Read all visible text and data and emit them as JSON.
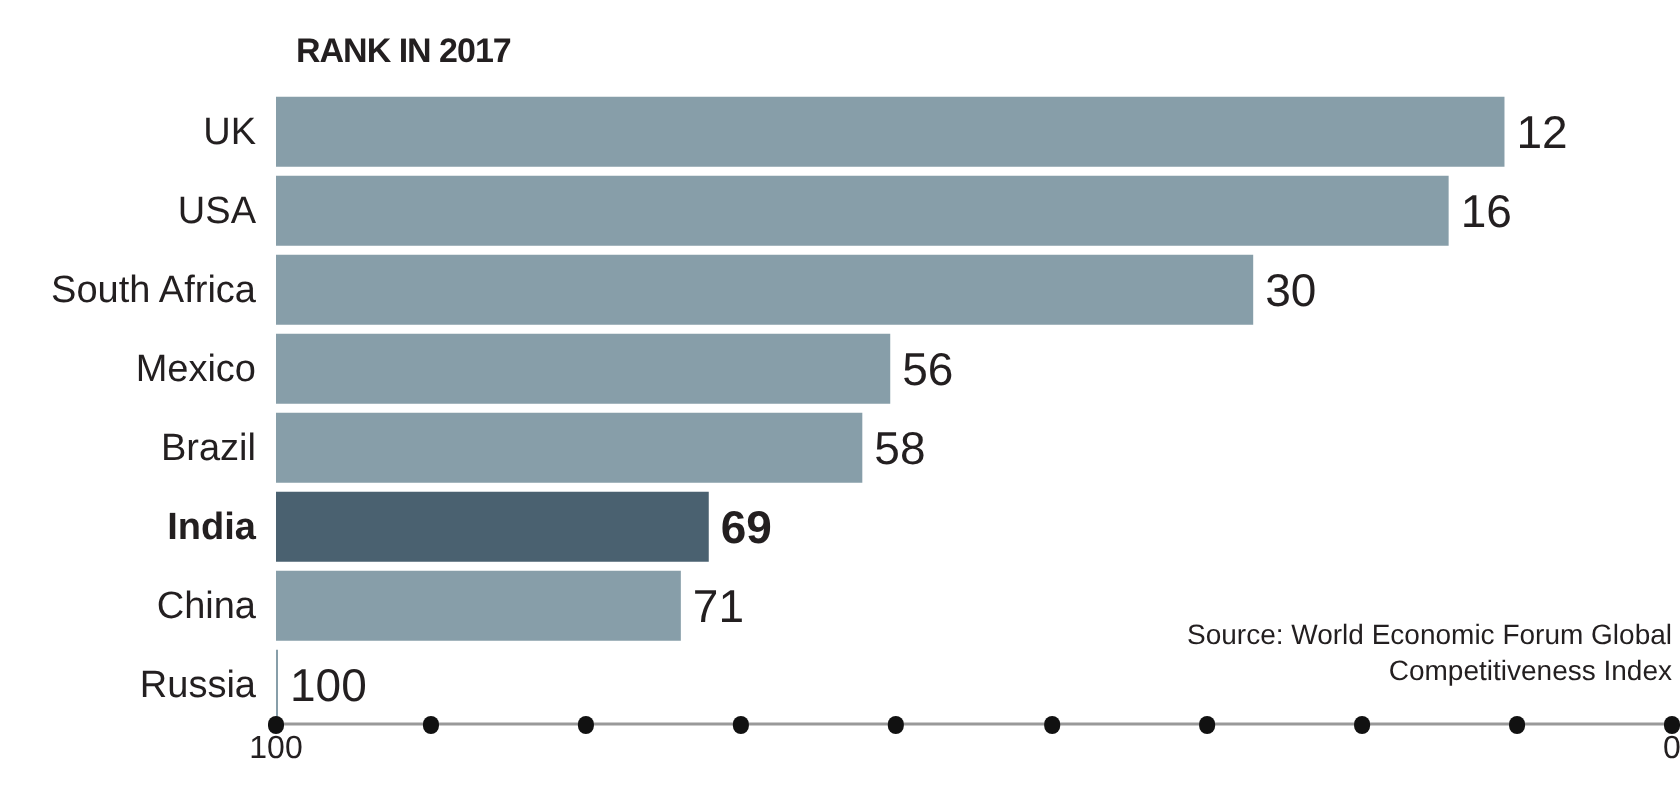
{
  "chart_data": {
    "type": "bar",
    "orientation": "horizontal",
    "title": "RANK IN 2017",
    "categories": [
      "UK",
      "USA",
      "South Africa",
      "Mexico",
      "Brazil",
      "India",
      "China",
      "Russia"
    ],
    "base": [
      100,
      100,
      100,
      100,
      100,
      100,
      100,
      100
    ],
    "values": [
      -88,
      -84,
      -70,
      -44,
      -42,
      -31,
      -29,
      0
    ],
    "value_labels": [
      "12",
      "16",
      "30",
      "56",
      "58",
      "69",
      "71",
      "100"
    ],
    "colors": [
      "#879ea9",
      "#879ea9",
      "#879ea9",
      "#879ea9",
      "#879ea9",
      "#4a6170",
      "#879ea9",
      "#879ea9"
    ],
    "xlim": [
      100,
      0
    ],
    "xticks": [
      100,
      {
        "value": 88.9,
        "label": null
      },
      {
        "value": 77.8,
        "label": null
      },
      {
        "value": 66.7,
        "label": null
      },
      {
        "value": 55.6,
        "label": null
      },
      {
        "value": 44.4,
        "label": null
      },
      {
        "value": 33.3,
        "label": null
      },
      {
        "value": 22.2,
        "label": null
      },
      {
        "value": 11.1,
        "label": null
      },
      0
    ],
    "annotations": [
      "Source: World Economic Forum Global Competitiveness Index"
    ]
  }
}
